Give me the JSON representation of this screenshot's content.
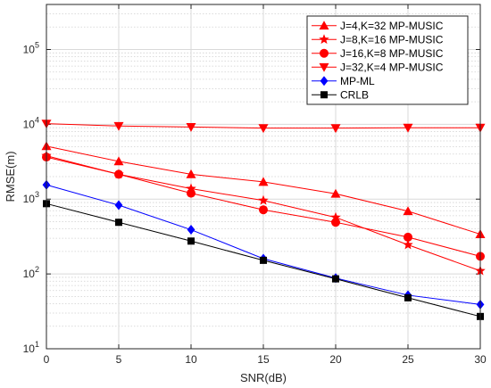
{
  "chart_data": {
    "type": "line",
    "title": "",
    "xlabel": "SNR(dB)",
    "ylabel": "RMSE(m)",
    "x": [
      0,
      5,
      10,
      15,
      20,
      25,
      30
    ],
    "xlim": [
      0,
      30
    ],
    "ylim": [
      10,
      400000
    ],
    "yscale": "log",
    "grid": true,
    "legend_position": "top-right",
    "x_ticks": [
      "0",
      "5",
      "10",
      "15",
      "20",
      "25",
      "30"
    ],
    "y_ticks": [
      {
        "base": "10",
        "exp": "1"
      },
      {
        "base": "10",
        "exp": "2"
      },
      {
        "base": "10",
        "exp": "3"
      },
      {
        "base": "10",
        "exp": "4"
      },
      {
        "base": "10",
        "exp": "5"
      }
    ],
    "series": [
      {
        "name": "J=4,K=32 MP-MUSIC",
        "color": "#ff0000",
        "marker": "triangle-up",
        "values": [
          5100,
          3200,
          2150,
          1700,
          1180,
          690,
          340
        ]
      },
      {
        "name": "J=8,K=16 MP-MUSIC",
        "color": "#ff0000",
        "marker": "star",
        "values": [
          3800,
          2150,
          1380,
          960,
          570,
          245,
          110
        ]
      },
      {
        "name": "J=16,K=8 MP-MUSIC",
        "color": "#ff0000",
        "marker": "circle",
        "values": [
          3650,
          2150,
          1200,
          720,
          490,
          310,
          172
        ]
      },
      {
        "name": "J=32,K=4 MP-MUSIC",
        "color": "#ff0000",
        "marker": "triangle-down",
        "values": [
          10200,
          9500,
          9200,
          8900,
          8900,
          9000,
          9000
        ]
      },
      {
        "name": "MP-ML",
        "color": "#0000ff",
        "marker": "diamond",
        "values": [
          1550,
          830,
          390,
          160,
          88,
          52,
          39
        ]
      },
      {
        "name": "CRLB",
        "color": "#000000",
        "marker": "square",
        "values": [
          870,
          490,
          275,
          152,
          86,
          48,
          27
        ]
      }
    ]
  }
}
